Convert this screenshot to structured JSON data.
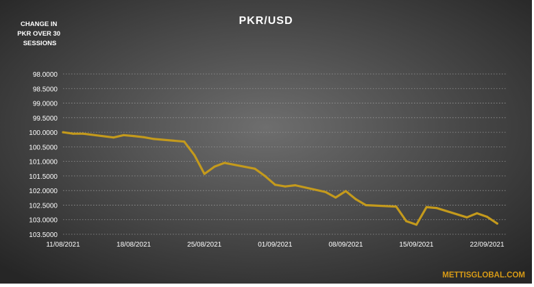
{
  "chart_data": {
    "type": "line",
    "title": "PKR/USD",
    "ylabel": "CHANGE IN PKR OVER 30 SESSIONS",
    "ylabel_lines": [
      "CHANGE IN",
      "PKR OVER 30",
      "SESSIONS"
    ],
    "xlabel": "",
    "watermark": "METTISGLOBAL.COM",
    "y_inverted": true,
    "ylim": [
      98.0,
      103.5
    ],
    "yticks": [
      98.0,
      98.5,
      99.0,
      99.5,
      100.0,
      100.5,
      101.0,
      101.5,
      102.0,
      102.5,
      103.0,
      103.5
    ],
    "ytick_labels": [
      "98.0000",
      "98.5000",
      "99.0000",
      "99.5000",
      "100.0000",
      "100.5000",
      "101.0000",
      "101.5000",
      "102.0000",
      "102.5000",
      "103.0000",
      "103.5000"
    ],
    "xlim": [
      "2021-08-11",
      "2021-09-24"
    ],
    "xticks": [
      "2021-08-11",
      "2021-08-18",
      "2021-08-25",
      "2021-09-01",
      "2021-09-08",
      "2021-09-15",
      "2021-09-22"
    ],
    "xtick_labels": [
      "11/08/2021",
      "18/08/2021",
      "25/08/2021",
      "01/09/2021",
      "08/09/2021",
      "15/09/2021",
      "22/09/2021"
    ],
    "grid": true,
    "legend": "none",
    "colors": {
      "line": "#c49a1c",
      "background_center": "#6e6e6e",
      "background_edge": "#262626",
      "text": "#ffffff",
      "watermark": "#d79a16",
      "grid": "#9a9a9a"
    },
    "series": [
      {
        "x": [
          "2021-08-11",
          "2021-08-12",
          "2021-08-13",
          "2021-08-16",
          "2021-08-17",
          "2021-08-18",
          "2021-08-19",
          "2021-08-20",
          "2021-08-23",
          "2021-08-24",
          "2021-08-25",
          "2021-08-26",
          "2021-08-27",
          "2021-08-30",
          "2021-08-31",
          "2021-09-01",
          "2021-09-02",
          "2021-09-03",
          "2021-09-06",
          "2021-09-07",
          "2021-09-08",
          "2021-09-09",
          "2021-09-10",
          "2021-09-13",
          "2021-09-14",
          "2021-09-15",
          "2021-09-16",
          "2021-09-17",
          "2021-09-20",
          "2021-09-21",
          "2021-09-22",
          "2021-09-23"
        ],
        "y": [
          100.0,
          100.05,
          100.05,
          100.18,
          100.1,
          100.13,
          100.17,
          100.23,
          100.32,
          100.78,
          101.43,
          101.18,
          101.05,
          101.25,
          101.5,
          101.8,
          101.86,
          101.82,
          102.05,
          102.24,
          102.02,
          102.3,
          102.5,
          102.55,
          103.05,
          103.17,
          102.57,
          102.6,
          102.92,
          102.78,
          102.9,
          103.13
        ]
      }
    ]
  }
}
